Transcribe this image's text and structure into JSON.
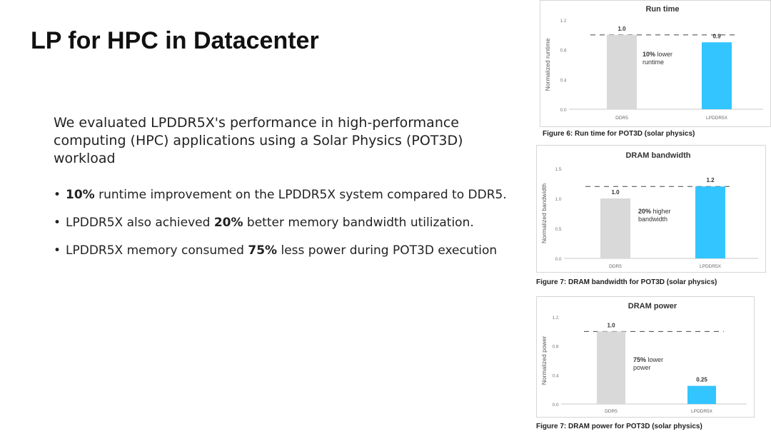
{
  "slide": {
    "title": "LP for HPC in Datacenter",
    "intro": "We evaluated LPDDR5X's performance in high-performance computing (HPC) applications using a Solar Physics (POT3D) workload",
    "bullets": [
      {
        "bold": "10%",
        "text": " runtime improvement on the LPDDR5X system compared to DDR5.",
        "prefix": ""
      },
      {
        "prefix": "LPDDR5X also achieved ",
        "bold": "20%",
        "text": " better memory bandwidth utilization."
      },
      {
        "prefix": "LPDDR5X memory consumed ",
        "bold": "75%",
        "text": " less power during POT3D execution"
      }
    ]
  },
  "colors": {
    "ddr5": "#d9d9d9",
    "lpddr5x": "#33c5ff",
    "dashed": "#444444",
    "text": "#333333"
  },
  "chart_data": [
    {
      "type": "bar",
      "title": "Run time",
      "ylabel": "Normalized runtime",
      "categories": [
        "DDR5",
        "LPDDR5X"
      ],
      "values": [
        1.0,
        0.9
      ],
      "value_labels": [
        "1.0",
        "0.9"
      ],
      "ylim": [
        0,
        1.2
      ],
      "yticks": [
        "0.0",
        "0.4",
        "0.8",
        "1.2"
      ],
      "ytick_values": [
        0,
        0.4,
        0.8,
        1.2
      ],
      "reference_line": 1.0,
      "annotation": [
        "10% lower",
        "runtime"
      ],
      "annotation_bold": "",
      "caption": "Figure 6: Run time for POT3D (solar physics)"
    },
    {
      "type": "bar",
      "title": "DRAM bandwidth",
      "ylabel": "Normalized bandwidth",
      "categories": [
        "DDR5",
        "LPDDR5X"
      ],
      "values": [
        1.0,
        1.2
      ],
      "value_labels": [
        "1.0",
        "1.2"
      ],
      "ylim": [
        0,
        1.5
      ],
      "yticks": [
        "0.0",
        "0.5",
        "1.0",
        "1.5"
      ],
      "ytick_values": [
        0,
        0.5,
        1.0,
        1.5
      ],
      "reference_line": 1.2,
      "annotation": [
        "20% higher",
        "bandwidth"
      ],
      "caption": "Figure 7: DRAM bandwidth for POT3D (solar physics)"
    },
    {
      "type": "bar",
      "title": "DRAM power",
      "ylabel": "Normalized power",
      "categories": [
        "DDR5",
        "LPDDR5X"
      ],
      "values": [
        1.0,
        0.25
      ],
      "value_labels": [
        "1.0",
        "0.25"
      ],
      "ylim": [
        0,
        1.2
      ],
      "yticks": [
        "0.0",
        "0.4",
        "0.8",
        "1.2"
      ],
      "ytick_values": [
        0,
        0.4,
        0.8,
        1.2
      ],
      "reference_line": 1.0,
      "annotation": [
        "75% lower",
        "power"
      ],
      "caption": "Figure 7: DRAM power for POT3D (solar physics)"
    }
  ]
}
